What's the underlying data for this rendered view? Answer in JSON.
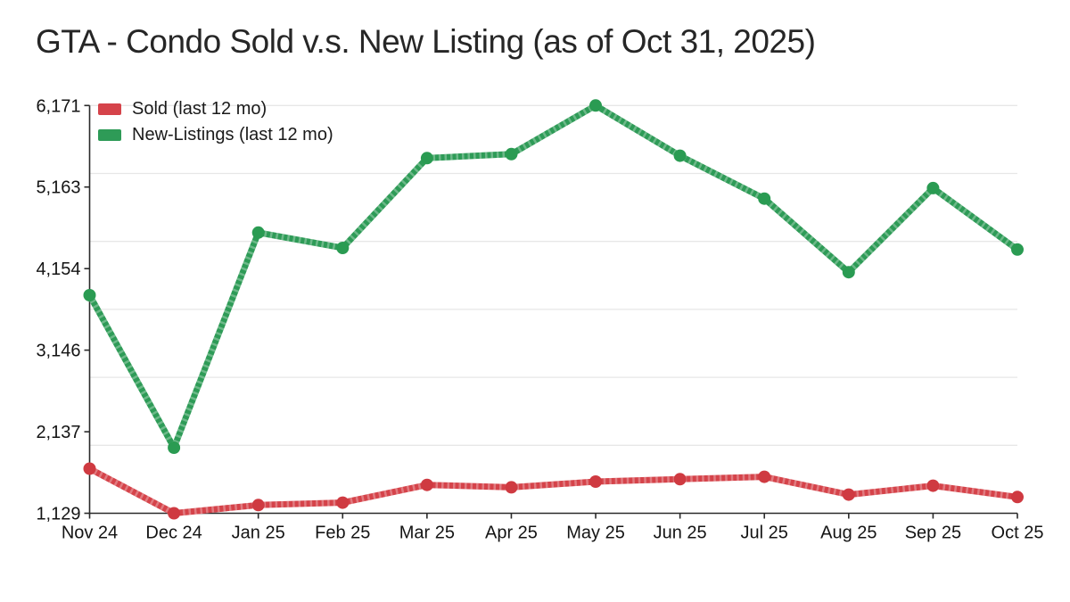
{
  "title": "GTA - Condo Sold v.s. New Listing (as of Oct 31, 2025)",
  "legend": {
    "position": "top-left",
    "items": [
      {
        "label": "Sold (last 12 mo)",
        "color": "#d5434a"
      },
      {
        "label": "New-Listings (last 12 mo)",
        "color": "#2e9b57"
      }
    ]
  },
  "chart_data": {
    "type": "line",
    "title": "GTA - Condo Sold v.s. New Listing (as of Oct 31, 2025)",
    "xlabel": "",
    "ylabel": "",
    "categories": [
      "Nov 24",
      "Dec 24",
      "Jan 25",
      "Feb 25",
      "Mar 25",
      "Apr 25",
      "May 25",
      "Jun 25",
      "Jul 25",
      "Aug 25",
      "Sep 25",
      "Oct 25"
    ],
    "series": [
      {
        "id": "sold",
        "name": "Sold (last 12 mo)",
        "color": "#d5434a",
        "point_color": "#cf3a41",
        "values": [
          1680,
          1129,
          1230,
          1260,
          1480,
          1450,
          1520,
          1550,
          1580,
          1360,
          1470,
          1330
        ]
      },
      {
        "id": "new-listings",
        "name": "New-Listings (last 12 mo)",
        "color": "#2e9b57",
        "point_color": "#2a9b52",
        "values": [
          3825,
          1940,
          4600,
          4410,
          5520,
          5570,
          6171,
          5550,
          5020,
          4110,
          5150,
          4390
        ]
      }
    ],
    "ylim": [
      1129,
      6171
    ],
    "yticks": {
      "values": [
        1129,
        2137,
        3146,
        4154,
        5163,
        6171
      ],
      "labels": [
        "1,129",
        "2,137",
        "3,146",
        "4,154",
        "5,163",
        "6,171"
      ]
    },
    "grid": {
      "horizontal": true,
      "horizontal_divisions": 6,
      "color": "#e7e7e7"
    },
    "axis_color": "#2a2a2a",
    "legend_position": "top-left"
  }
}
